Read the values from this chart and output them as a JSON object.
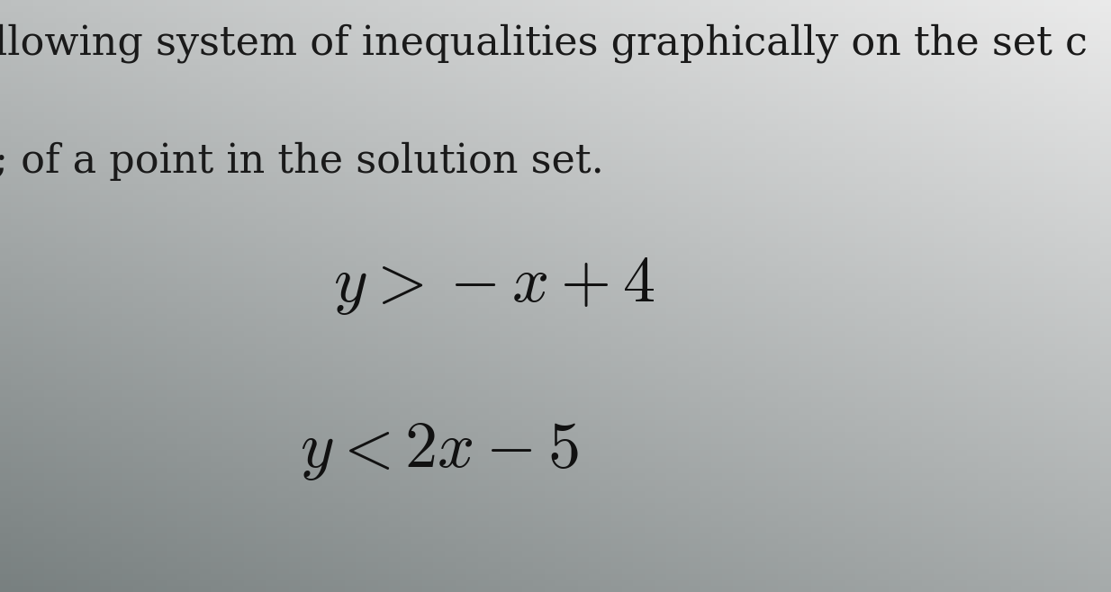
{
  "bg_color_top": "#e8e8e8",
  "bg_color_bottom": "#7a8080",
  "text_line1": "llowing system of inequalities graphically on the set c",
  "text_line2": "; of a point in the solution set.",
  "eq1": "$y > -x + 4$",
  "eq2": "$y < 2x - 5$",
  "title_fontsize": 32,
  "eq_fontsize": 52,
  "text_color": "#1a1a1a",
  "eq_color": "#111111",
  "fig_width": 12.34,
  "fig_height": 6.58,
  "dpi": 100
}
